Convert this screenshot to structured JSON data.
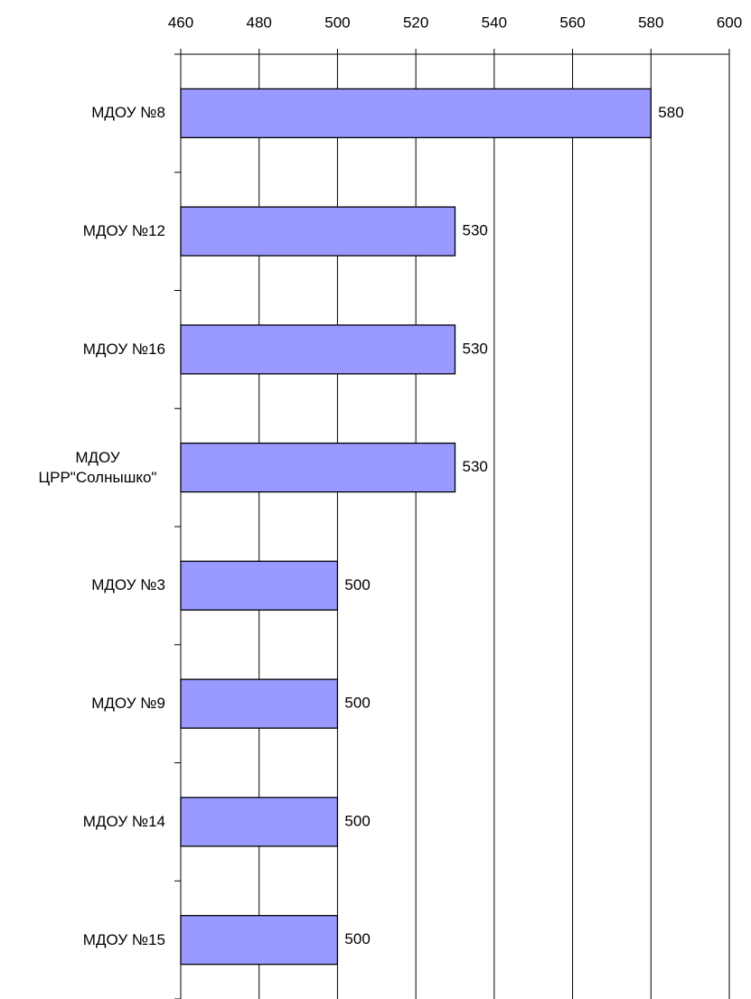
{
  "chart_data": {
    "type": "barh",
    "categories": [
      "МДОУ №8",
      "МДОУ №12",
      "МДОУ №16",
      "МДОУ ЦРР\"Солнышко\"",
      "МДОУ №3",
      "МДОУ №9",
      "МДОУ №14",
      "МДОУ №15"
    ],
    "values": [
      580,
      530,
      530,
      530,
      500,
      500,
      500,
      500
    ],
    "color": "#9999ff",
    "xlim": [
      460,
      600
    ],
    "xticks": [
      460,
      480,
      500,
      520,
      540,
      560,
      580,
      600
    ],
    "grid": true
  }
}
